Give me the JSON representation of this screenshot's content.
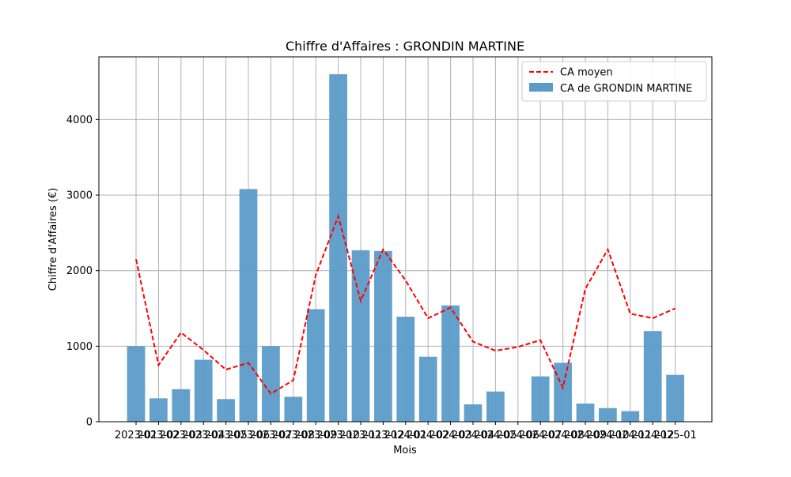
{
  "chart_data": {
    "type": "bar",
    "title": "Chiffre d'Affaires : GRONDIN MARTINE",
    "xlabel": "Mois",
    "ylabel": "Chiffre d'Affaires (€)",
    "ylim": [
      0,
      4830
    ],
    "yticks": [
      0,
      1000,
      2000,
      3000,
      4000
    ],
    "grid": true,
    "legend_position": "top-right",
    "categories": [
      "2023-01",
      "2023-02",
      "2023-03",
      "2023-04",
      "2023-05",
      "2023-06",
      "2023-07",
      "2023-08",
      "2023-09",
      "2023-10",
      "2023-11",
      "2023-12",
      "2024-01",
      "2024-02",
      "2024-03",
      "2024-04",
      "2024-05",
      "2024-06",
      "2024-07",
      "2024-08",
      "2024-09",
      "2024-10",
      "2024-11",
      "2024-12",
      "2025-01"
    ],
    "series": [
      {
        "name": "CA de GRONDIN MARTINE",
        "type": "bar",
        "color": "#5b9bc9",
        "values": [
          1000,
          310,
          430,
          820,
          300,
          3080,
          1000,
          330,
          1490,
          4600,
          2270,
          2260,
          1390,
          860,
          1540,
          230,
          400,
          0,
          600,
          780,
          240,
          180,
          140,
          1200,
          620
        ]
      },
      {
        "name": "CA moyen",
        "type": "line",
        "color": "#ff0000",
        "style": "dashed",
        "values": [
          2150,
          750,
          1180,
          950,
          690,
          780,
          370,
          550,
          1940,
          2720,
          1600,
          2280,
          1870,
          1370,
          1510,
          1060,
          940,
          990,
          1080,
          450,
          1760,
          2280,
          1430,
          1370,
          1500
        ]
      }
    ]
  }
}
